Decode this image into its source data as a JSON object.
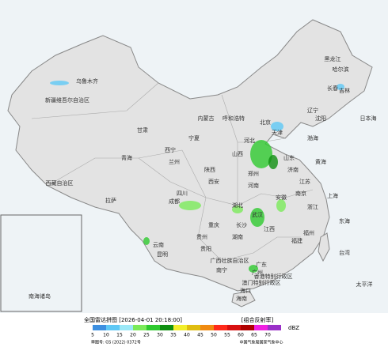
{
  "header": {
    "title": "全国雷达拼图 [2026-04-01 20:18:00]",
    "product": "[组合反射率]"
  },
  "legend": {
    "unit": "dBZ",
    "items": [
      {
        "value": 5,
        "color": "#3d8fe0"
      },
      {
        "value": 10,
        "color": "#5ec8f5"
      },
      {
        "value": 15,
        "color": "#9be8f7"
      },
      {
        "value": 20,
        "color": "#7bea5a"
      },
      {
        "value": 25,
        "color": "#2ec92e"
      },
      {
        "value": 30,
        "color": "#0f8f10"
      },
      {
        "value": 35,
        "color": "#f2ee2a"
      },
      {
        "value": 40,
        "color": "#e0bd10"
      },
      {
        "value": 45,
        "color": "#f08a10"
      },
      {
        "value": 50,
        "color": "#ff2a1a"
      },
      {
        "value": 55,
        "color": "#d81010"
      },
      {
        "value": 60,
        "color": "#b00000"
      },
      {
        "value": 65,
        "color": "#f020e0"
      },
      {
        "value": 70,
        "color": "#9a30c8"
      }
    ]
  },
  "map": {
    "labels": [
      "乌鲁木齐",
      "新疆维吾尔自治区",
      "西藏自治区",
      "拉萨",
      "青海",
      "西宁",
      "甘肃",
      "兰州",
      "内蒙古",
      "呼和浩特",
      "黑龙江",
      "哈尔滨",
      "吉林",
      "长春",
      "辽宁",
      "沈阳",
      "北京",
      "天津",
      "河北",
      "山西",
      "宁夏",
      "陕西",
      "西安",
      "河南",
      "郑州",
      "山东",
      "济南",
      "江苏",
      "南京",
      "上海",
      "安徽",
      "湖北",
      "武汉",
      "四川",
      "成都",
      "重庆",
      "贵州",
      "贵阳",
      "湖南",
      "长沙",
      "江西",
      "浙江",
      "福建",
      "福州",
      "台湾",
      "云南",
      "昆明",
      "广西壮族自治区",
      "南宁",
      "广东",
      "广州",
      "香港特别行政区",
      "澳门特别行政区",
      "海南",
      "海口",
      "渤海",
      "黄海",
      "东海",
      "太平洋",
      "日本海",
      "南海诸岛"
    ]
  },
  "footer": {
    "map_number": "审图号: GS (2022) 0372号",
    "credit": "中国气象局国家气象中心"
  }
}
